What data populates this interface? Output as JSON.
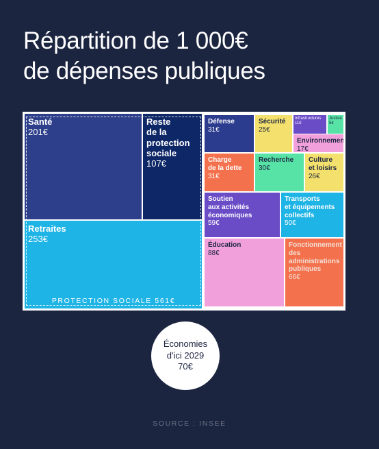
{
  "title_line1": "Répartition de 1 000€",
  "title_line2": "de dépenses publiques",
  "chart_data": {
    "type": "treemap",
    "title": "Répartition de 1 000€ de dépenses publiques",
    "total": 1000,
    "unit": "€",
    "groups": [
      {
        "name": "PROTECTION SOCIALE",
        "label": "PROTECTION SOCIALE 561€",
        "value": 561
      }
    ],
    "items": [
      {
        "label": "Santé",
        "value_label": "201€",
        "value": 201,
        "group": "PROTECTION SOCIALE",
        "color": "#2d3f8a"
      },
      {
        "label": "Reste\nde la\nprotection\nsociale",
        "value_label": "107€",
        "value": 107,
        "group": "PROTECTION SOCIALE",
        "color": "#0e2766"
      },
      {
        "label": "Retraites",
        "value_label": "253€",
        "value": 253,
        "group": "PROTECTION SOCIALE",
        "color": "#1fb4e6"
      },
      {
        "label": "Défense",
        "value_label": "31€",
        "value": 31,
        "color": "#2b3b8d"
      },
      {
        "label": "Sécurité",
        "value_label": "25€",
        "value": 25,
        "color": "#f4e06d"
      },
      {
        "label": "Infrastructures",
        "value_label": "11€",
        "value": 11,
        "color": "#6a4cc7"
      },
      {
        "label": "Justice",
        "value_label": "5€",
        "value": 5,
        "color": "#57e3a6"
      },
      {
        "label": "Environnement",
        "value_label": "17€",
        "value": 17,
        "color": "#f2a0dc"
      },
      {
        "label": "Charge\nde la dette",
        "value_label": "31€",
        "value": 31,
        "color": "#f3724d"
      },
      {
        "label": "Recherche",
        "value_label": "30€",
        "value": 30,
        "color": "#57e3a6"
      },
      {
        "label": "Culture\net loisirs",
        "value_label": "26€",
        "value": 26,
        "color": "#f4e06d"
      },
      {
        "label": "Soutien\naux activités\néconomiques",
        "value_label": "59€",
        "value": 59,
        "color": "#6a4cc7"
      },
      {
        "label": "Transports\net équipements\ncollectifs",
        "value_label": "50€",
        "value": 50,
        "color": "#1fb4e6"
      },
      {
        "label": "Éducation",
        "value_label": "88€",
        "value": 88,
        "color": "#f2a0dc"
      },
      {
        "label": "Fonctionnement\ndes\nadministrations\npubliques",
        "value_label": "66€",
        "value": 66,
        "color": "#f3724d"
      }
    ]
  },
  "savings": {
    "line1": "Économies",
    "line2": "d'ici 2029",
    "value": "70€"
  },
  "source": "SOURCE : INSEE"
}
